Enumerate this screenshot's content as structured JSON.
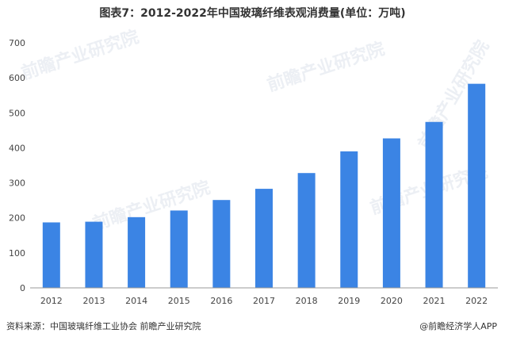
{
  "title": "图表7：2012-2022年中国玻璃纤维表观消费量(单位：万吨)",
  "watermark": "前瞻产业研究院",
  "footer": {
    "source": "资料来源：中国玻璃纤维工业协会 前瞻产业研究院",
    "brand": "@前瞻经济学人APP"
  },
  "colors": {
    "bar": "#3b84e4",
    "axis": "#999999"
  },
  "chart_data": {
    "type": "bar",
    "title": "图表7：2012-2022年中国玻璃纤维表观消费量(单位：万吨)",
    "xlabel": "",
    "ylabel": "",
    "categories": [
      "2012",
      "2013",
      "2014",
      "2015",
      "2016",
      "2017",
      "2018",
      "2019",
      "2020",
      "2021",
      "2022"
    ],
    "values": [
      187,
      189,
      202,
      221,
      251,
      283,
      328,
      390,
      427,
      474,
      583
    ],
    "ylim": [
      0,
      700
    ],
    "yticks": [
      "0",
      "100",
      "200",
      "300",
      "400",
      "500",
      "600",
      "700"
    ],
    "grid": false,
    "legend": "none"
  }
}
